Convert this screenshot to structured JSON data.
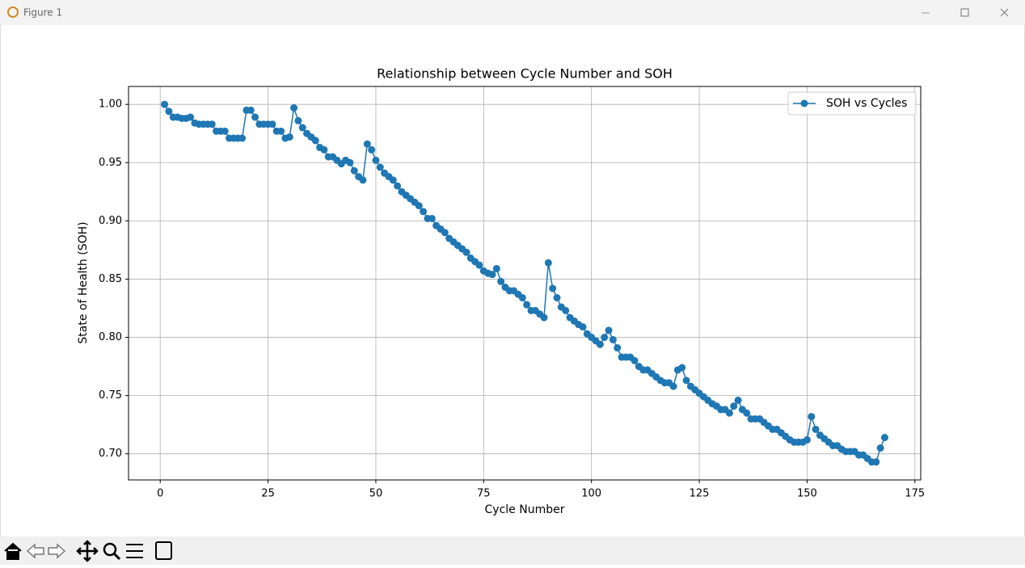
{
  "window": {
    "title": "Figure 1"
  },
  "chart_data": {
    "type": "line",
    "title": "Relationship between Cycle Number and SOH",
    "x_label": "Cycle Number",
    "y_label": "State of Health (SOH)",
    "x": [
      1,
      2,
      3,
      4,
      5,
      6,
      7,
      8,
      9,
      10,
      11,
      12,
      13,
      14,
      15,
      16,
      17,
      18,
      19,
      20,
      21,
      22,
      23,
      24,
      25,
      26,
      27,
      28,
      29,
      30,
      31,
      32,
      33,
      34,
      35,
      36,
      37,
      38,
      39,
      40,
      41,
      42,
      43,
      44,
      45,
      46,
      47,
      48,
      49,
      50,
      51,
      52,
      53,
      54,
      55,
      56,
      57,
      58,
      59,
      60,
      61,
      62,
      63,
      64,
      65,
      66,
      67,
      68,
      69,
      70,
      71,
      72,
      73,
      74,
      75,
      76,
      77,
      78,
      79,
      80,
      81,
      82,
      83,
      84,
      85,
      86,
      87,
      88,
      89,
      90,
      91,
      92,
      93,
      94,
      95,
      96,
      97,
      98,
      99,
      100,
      101,
      102,
      103,
      104,
      105,
      106,
      107,
      108,
      109,
      110,
      111,
      112,
      113,
      114,
      115,
      116,
      117,
      118,
      119,
      120,
      121,
      122,
      123,
      124,
      125,
      126,
      127,
      128,
      129,
      130,
      131,
      132,
      133,
      134,
      135,
      136,
      137,
      138,
      139,
      140,
      141,
      142,
      143,
      144,
      145,
      146,
      147,
      148,
      149,
      150,
      151,
      152,
      153,
      154,
      155,
      156,
      157,
      158,
      159,
      160,
      161,
      162,
      163,
      164,
      165,
      166,
      167,
      168
    ],
    "series": [
      {
        "name": "SOH vs Cycles",
        "color": "#1f77b4",
        "values": [
          1.0,
          0.994,
          0.989,
          0.989,
          0.988,
          0.988,
          0.989,
          0.984,
          0.983,
          0.983,
          0.983,
          0.983,
          0.977,
          0.977,
          0.977,
          0.971,
          0.971,
          0.971,
          0.971,
          0.995,
          0.995,
          0.989,
          0.983,
          0.983,
          0.983,
          0.983,
          0.977,
          0.977,
          0.971,
          0.972,
          0.997,
          0.986,
          0.98,
          0.975,
          0.972,
          0.969,
          0.963,
          0.961,
          0.955,
          0.955,
          0.952,
          0.949,
          0.952,
          0.95,
          0.943,
          0.938,
          0.935,
          0.966,
          0.961,
          0.952,
          0.946,
          0.941,
          0.938,
          0.935,
          0.93,
          0.925,
          0.922,
          0.919,
          0.916,
          0.913,
          0.908,
          0.902,
          0.902,
          0.896,
          0.893,
          0.89,
          0.885,
          0.882,
          0.879,
          0.876,
          0.873,
          0.868,
          0.865,
          0.862,
          0.857,
          0.855,
          0.854,
          0.859,
          0.848,
          0.843,
          0.84,
          0.84,
          0.837,
          0.834,
          0.828,
          0.823,
          0.823,
          0.82,
          0.817,
          0.864,
          0.842,
          0.834,
          0.826,
          0.823,
          0.817,
          0.814,
          0.811,
          0.809,
          0.803,
          0.8,
          0.797,
          0.794,
          0.8,
          0.806,
          0.798,
          0.791,
          0.783,
          0.783,
          0.783,
          0.78,
          0.775,
          0.772,
          0.772,
          0.769,
          0.766,
          0.763,
          0.761,
          0.761,
          0.758,
          0.772,
          0.774,
          0.763,
          0.758,
          0.755,
          0.752,
          0.749,
          0.746,
          0.743,
          0.741,
          0.738,
          0.738,
          0.735,
          0.741,
          0.746,
          0.738,
          0.735,
          0.73,
          0.73,
          0.73,
          0.727,
          0.724,
          0.721,
          0.721,
          0.718,
          0.715,
          0.712,
          0.71,
          0.71,
          0.71,
          0.712,
          0.732,
          0.721,
          0.716,
          0.713,
          0.71,
          0.707,
          0.707,
          0.704,
          0.702,
          0.702,
          0.702,
          0.699,
          0.699,
          0.696,
          0.693,
          0.693,
          0.705,
          0.714
        ]
      }
    ],
    "xlim": [
      -7.35,
      176.35
    ],
    "ylim": [
      0.6776,
      1.0154
    ],
    "xticks": [
      0,
      25,
      50,
      75,
      100,
      125,
      150,
      175
    ],
    "yticks": [
      {
        "value": 0.7,
        "label": "0.70"
      },
      {
        "value": 0.75,
        "label": "0.75"
      },
      {
        "value": 0.8,
        "label": "0.80"
      },
      {
        "value": 0.85,
        "label": "0.85"
      },
      {
        "value": 0.9,
        "label": "0.90"
      },
      {
        "value": 0.95,
        "label": "0.95"
      },
      {
        "value": 1.0,
        "label": "1.00"
      }
    ],
    "grid": true,
    "legend": "upper right"
  }
}
